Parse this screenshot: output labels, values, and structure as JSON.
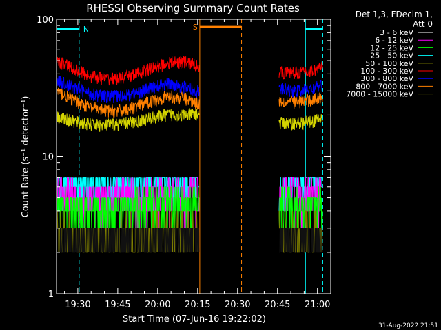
{
  "chart_data": {
    "type": "line",
    "title": "RHESSI Observing Summary Count Rates",
    "xlabel": "Start Time (07-Jun-16 19:22:02)",
    "ylabel": "Count Rate (s⁻¹ detector⁻¹)",
    "x_ticks": [
      "19:30",
      "19:45",
      "20:00",
      "20:15",
      "20:30",
      "20:45",
      "21:00"
    ],
    "x_tick_minutes": [
      30,
      45,
      60,
      75,
      90,
      105,
      120
    ],
    "xlim_minutes": [
      22,
      125
    ],
    "y_scale": "log",
    "ylim": [
      1,
      100
    ],
    "y_ticks": [
      "1",
      "10",
      "100"
    ],
    "legend_title": [
      "Det 1,3, FDecim 1,",
      "Att 0"
    ],
    "footer": "31-Aug-2022 21:51",
    "data_gap_minutes": [
      75.8,
      105.5
    ],
    "series": [
      {
        "name": "3 - 6 keV",
        "color": "#000000",
        "x": [
          22,
          28,
          34,
          40,
          46,
          52,
          58,
          64,
          70,
          75,
          106,
          112,
          118,
          122
        ],
        "y": [
          1.6,
          1.5,
          1.5,
          1.6,
          1.5,
          1.5,
          1.6,
          1.5,
          1.5,
          1.6,
          1.5,
          1.5,
          1.6,
          1.5
        ]
      },
      {
        "name": "6 - 12 keV",
        "color": "#ff00ff",
        "x": [
          22,
          28,
          34,
          40,
          46,
          52,
          58,
          64,
          70,
          75,
          106,
          112,
          118,
          122
        ],
        "y": [
          4.3,
          4.0,
          3.8,
          3.9,
          4.1,
          4.0,
          4.2,
          4.3,
          4.1,
          4.4,
          4.0,
          4.2,
          4.1,
          4.3
        ]
      },
      {
        "name": "12 - 25 keV",
        "color": "#00ff00",
        "x": [
          22,
          28,
          34,
          40,
          46,
          52,
          58,
          64,
          70,
          75,
          106,
          112,
          118,
          122
        ],
        "y": [
          3.4,
          3.1,
          3.0,
          3.1,
          3.2,
          3.2,
          3.4,
          3.5,
          3.3,
          3.6,
          3.3,
          3.4,
          3.3,
          3.5
        ]
      },
      {
        "name": "25 - 50 keV",
        "color": "#00ffff",
        "x": [
          22,
          28,
          34,
          40,
          46,
          52,
          58,
          64,
          70,
          75,
          106,
          112,
          118,
          122
        ],
        "y": [
          5.8,
          5.5,
          5.3,
          5.2,
          5.4,
          5.5,
          5.8,
          5.9,
          5.6,
          6.2,
          5.5,
          5.6,
          5.7,
          6.0
        ]
      },
      {
        "name": "50 - 100 keV",
        "color": "#d4d400",
        "x": [
          22,
          28,
          34,
          40,
          46,
          52,
          58,
          64,
          70,
          75,
          106,
          112,
          118,
          122
        ],
        "y": [
          19.5,
          18.0,
          17.2,
          16.8,
          17.3,
          18.0,
          19.2,
          20.2,
          20.0,
          20.5,
          17.5,
          17.5,
          18.0,
          19.0
        ]
      },
      {
        "name": "100 - 300 keV",
        "color": "#ff0000",
        "x": [
          22,
          28,
          34,
          40,
          46,
          52,
          58,
          64,
          70,
          75,
          106,
          112,
          118,
          122
        ],
        "y": [
          50,
          44,
          39,
          37,
          37,
          40,
          44,
          48,
          49,
          46,
          41,
          41,
          42,
          45
        ]
      },
      {
        "name": "300 - 800 keV",
        "color": "#0000ff",
        "x": [
          22,
          28,
          34,
          40,
          46,
          52,
          58,
          64,
          70,
          75,
          106,
          112,
          118,
          122
        ],
        "y": [
          36,
          32,
          29,
          27.5,
          27.5,
          29,
          32,
          34,
          32,
          30,
          31,
          30,
          31,
          33
        ]
      },
      {
        "name": "800 - 7000 keV",
        "color": "#ff8000",
        "x": [
          22,
          28,
          34,
          40,
          46,
          52,
          58,
          64,
          70,
          75,
          106,
          112,
          118,
          122
        ],
        "y": [
          30,
          26,
          23,
          21.5,
          21.5,
          23,
          25.5,
          27.5,
          26.5,
          24.5,
          25.5,
          25,
          26,
          27
        ]
      },
      {
        "name": "7000 - 15000 keV",
        "color": "#808000",
        "x": [
          22,
          28,
          34,
          40,
          46,
          52,
          58,
          64,
          70,
          75,
          106,
          112,
          118,
          122
        ],
        "y": [
          1.9,
          1.7,
          1.6,
          1.7,
          1.8,
          1.7,
          1.8,
          1.9,
          1.8,
          1.9,
          1.8,
          1.8,
          1.9,
          1.8
        ]
      }
    ],
    "annotations": [
      {
        "label": "N",
        "color": "#00ffff",
        "x_minutes": [
          22,
          30.5
        ],
        "y": 85
      },
      {
        "label": "",
        "color": "#00ffff",
        "x_minutes": [
          115.5,
          122
        ],
        "y": 85
      },
      {
        "label": "S",
        "color": "#ff8000",
        "x_minutes": [
          75.8,
          91.5
        ],
        "y": 88
      }
    ]
  }
}
